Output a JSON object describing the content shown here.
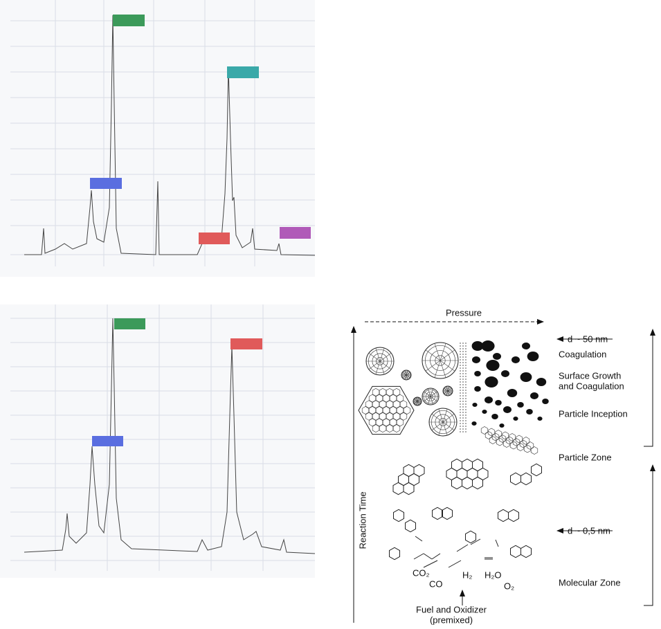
{
  "diagram": {
    "axes": {
      "pressure": "Pressure",
      "reaction_time": "Reaction Time"
    },
    "stages": [
      "Coagulation",
      "Surface Growth",
      "and Coagulation",
      "Particle Inception"
    ],
    "zones": [
      "Particle Zone",
      "Molecular Zone"
    ],
    "sizes": [
      "d ~ 50 nm",
      "d ~ 0,5 nm"
    ],
    "species": [
      "CO₂",
      "CO",
      "H₂",
      "H₂O",
      "O₂"
    ],
    "feed": [
      "Fuel and Oxidizer",
      "(premixed)"
    ]
  }
}
